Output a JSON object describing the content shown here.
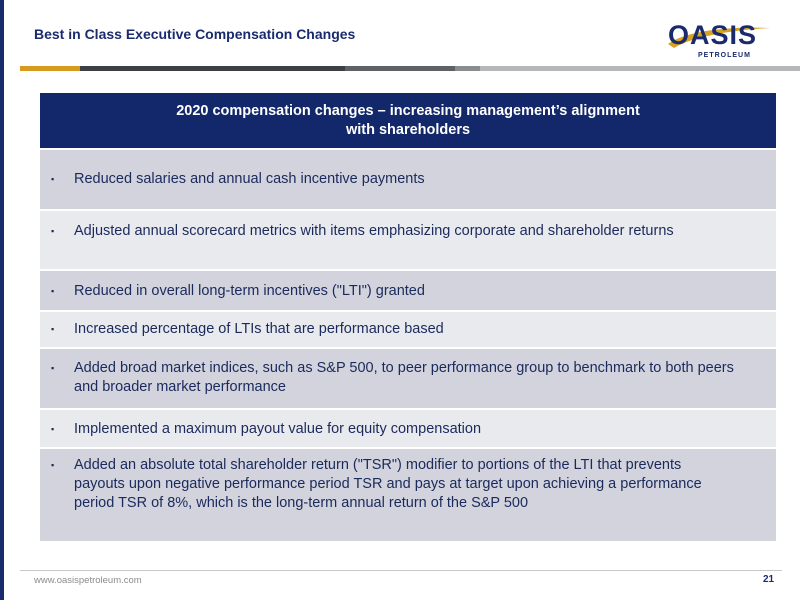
{
  "header": {
    "title": "Best in Class Executive Compensation Changes",
    "logo": {
      "main_text": "OASIS",
      "sub_text": "PETROLEUM",
      "brand_navy": "#1a2b6d",
      "brand_gold": "#d8a123"
    }
  },
  "stripe_colors": [
    "#d69a1e",
    "#3c4045",
    "#5e6266",
    "#8a8d90",
    "#b5b7b9"
  ],
  "table": {
    "header_line1": "2020 compensation changes – increasing management’s alignment",
    "header_line2": "with shareholders",
    "bullet": "▪",
    "rows": [
      "Reduced salaries and annual cash incentive payments",
      "Adjusted annual scorecard metrics with items emphasizing corporate and shareholder returns",
      "Reduced in overall long-term incentives (\"LTI\") granted",
      "Increased percentage of LTIs that are performance based",
      "Added broad market indices, such as S&P 500, to peer performance group to benchmark to both peers and broader market performance",
      "Implemented a maximum payout value for equity compensation",
      "Added an absolute total shareholder return (\"TSR\") modifier to portions of the LTI that prevents payouts upon negative performance period TSR and pays at target upon achieving a performance period TSR of 8%, which is the long-term annual return of the S&P 500"
    ]
  },
  "footer": {
    "url": "www.oasispetroleum.com",
    "page_number": "21"
  }
}
